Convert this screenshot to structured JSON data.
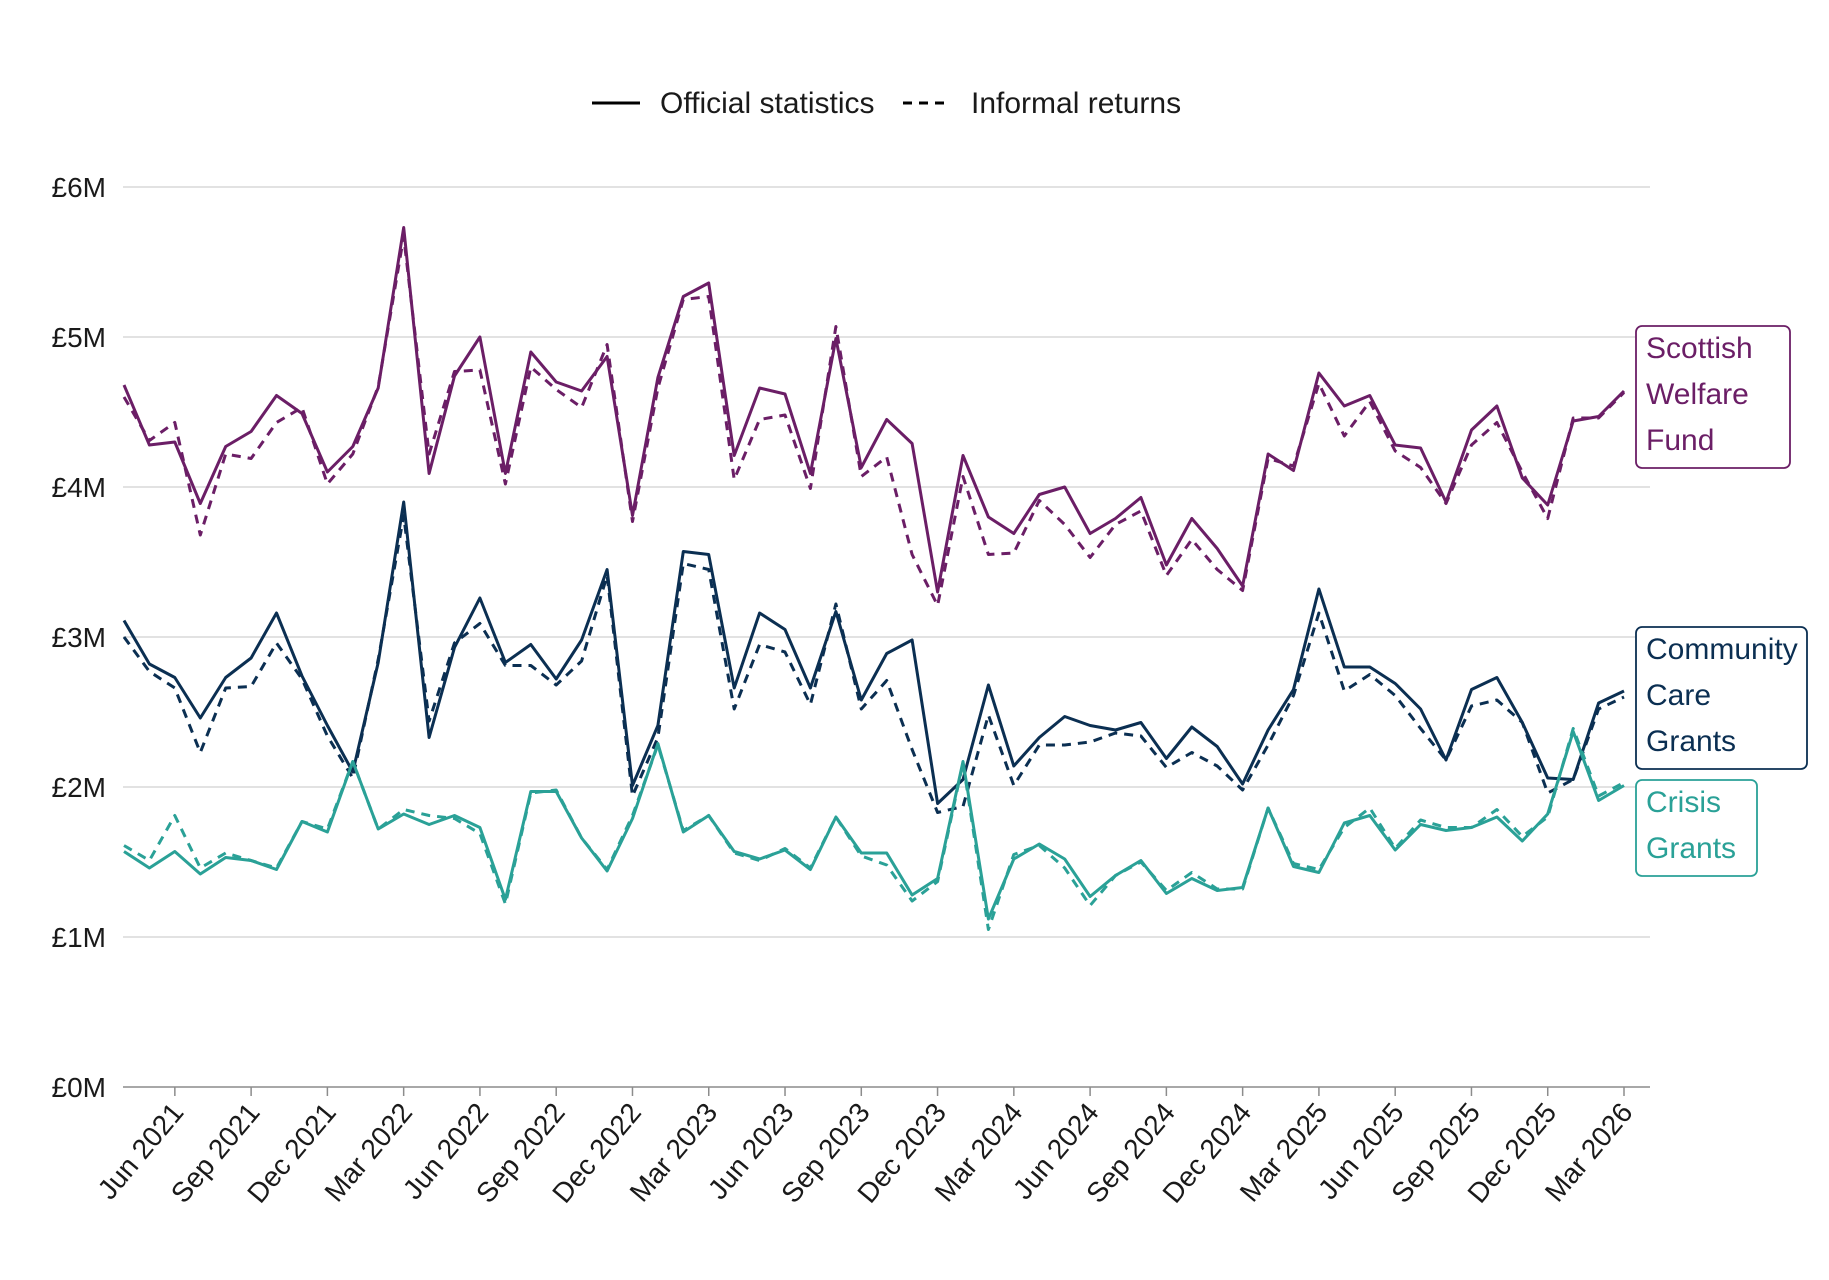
{
  "chart_data": {
    "type": "line",
    "title": "",
    "xlabel": "",
    "ylabel": "",
    "ylim": [
      0,
      6
    ],
    "y_unit": "£M",
    "y_ticks": [
      "£0M",
      "£1M",
      "£2M",
      "£3M",
      "£4M",
      "£5M",
      "£6M"
    ],
    "x_tick_labels": [
      "Jun 2021",
      "Sep 2021",
      "Dec 2021",
      "Mar 2022",
      "Jun 2022",
      "Sep 2022",
      "Dec 2022",
      "Mar 2023",
      "Jun 2023",
      "Sep 2023",
      "Dec 2023",
      "Mar 2024",
      "Jun 2024",
      "Sep 2024",
      "Dec 2024",
      "Mar 2025",
      "Jun 2025",
      "Sep 2025",
      "Dec 2025",
      "Mar 2026"
    ],
    "grid": "horizontal",
    "legend": {
      "placement": "top",
      "entries": [
        {
          "label": "Official statistics",
          "style": "solid"
        },
        {
          "label": "Informal returns",
          "style": "dashed"
        }
      ]
    },
    "x_start_month": "Apr 2021",
    "x": [
      "Apr 2021",
      "May 2021",
      "Jun 2021",
      "Jul 2021",
      "Aug 2021",
      "Sep 2021",
      "Oct 2021",
      "Nov 2021",
      "Dec 2021",
      "Jan 2022",
      "Feb 2022",
      "Mar 2022",
      "Apr 2022",
      "May 2022",
      "Jun 2022",
      "Jul 2022",
      "Aug 2022",
      "Sep 2022",
      "Oct 2022",
      "Nov 2022",
      "Dec 2022",
      "Jan 2023",
      "Feb 2023",
      "Mar 2023",
      "Apr 2023",
      "May 2023",
      "Jun 2023",
      "Jul 2023",
      "Aug 2023",
      "Sep 2023",
      "Oct 2023",
      "Nov 2023",
      "Dec 2023",
      "Jan 2024",
      "Feb 2024",
      "Mar 2024",
      "Apr 2024",
      "May 2024",
      "Jun 2024",
      "Jul 2024",
      "Aug 2024",
      "Sep 2024",
      "Oct 2024",
      "Nov 2024",
      "Dec 2024",
      "Jan 2025",
      "Feb 2025",
      "Mar 2025",
      "Apr 2025",
      "May 2025",
      "Jun 2025",
      "Jul 2025",
      "Aug 2025",
      "Sep 2025",
      "Oct 2025",
      "Nov 2025",
      "Dec 2025",
      "Jan 2026",
      "Feb 2026",
      "Mar 2026"
    ],
    "series": [
      {
        "name": "Scottish Welfare Fund",
        "label_lines": [
          "Scottish",
          "Welfare",
          "Fund"
        ],
        "color": "#6b1e66",
        "official": [
          4.68,
          4.28,
          4.3,
          3.89,
          4.27,
          4.37,
          4.61,
          4.49,
          4.1,
          4.27,
          4.66,
          5.73,
          4.09,
          4.74,
          5.0,
          4.09,
          4.9,
          4.7,
          4.64,
          4.87,
          3.81,
          4.73,
          5.27,
          5.36,
          4.21,
          4.66,
          4.62,
          4.09,
          4.99,
          4.13,
          4.45,
          4.29,
          3.3,
          4.21,
          3.8,
          3.69,
          3.95,
          4.0,
          3.69,
          3.79,
          3.93,
          3.48,
          3.79,
          3.59,
          3.34,
          4.22,
          4.11,
          4.76,
          4.54,
          4.61,
          4.28,
          4.26,
          3.9,
          4.38,
          4.54,
          4.06,
          3.88,
          4.44,
          4.47,
          4.64
        ],
        "informal": [
          4.6,
          4.31,
          4.43,
          3.68,
          4.22,
          4.19,
          4.43,
          4.53,
          4.02,
          4.22,
          4.67,
          5.67,
          4.22,
          4.77,
          4.78,
          4.02,
          4.8,
          4.65,
          4.53,
          4.95,
          3.77,
          4.66,
          5.25,
          5.27,
          4.05,
          4.45,
          4.48,
          3.99,
          5.07,
          4.07,
          4.2,
          3.55,
          3.21,
          4.07,
          3.55,
          3.56,
          3.91,
          3.75,
          3.53,
          3.75,
          3.84,
          3.41,
          3.65,
          3.45,
          3.31,
          4.19,
          4.14,
          4.69,
          4.34,
          4.57,
          4.24,
          4.13,
          3.89,
          4.28,
          4.43,
          4.1,
          3.79,
          4.46,
          4.46,
          4.63
        ]
      },
      {
        "name": "Community Care Grants",
        "label_lines": [
          "Community",
          "Care",
          "Grants"
        ],
        "color": "#0b2f52",
        "official": [
          3.11,
          2.82,
          2.73,
          2.46,
          2.73,
          2.86,
          3.16,
          2.74,
          2.41,
          2.1,
          2.83,
          3.9,
          2.33,
          2.93,
          3.26,
          2.83,
          2.95,
          2.72,
          2.98,
          3.45,
          2.01,
          2.41,
          3.57,
          3.55,
          2.66,
          3.16,
          3.05,
          2.66,
          3.17,
          2.58,
          2.89,
          2.98,
          1.89,
          2.05,
          2.68,
          2.14,
          2.33,
          2.47,
          2.41,
          2.38,
          2.43,
          2.19,
          2.4,
          2.27,
          2.02,
          2.38,
          2.65,
          3.32,
          2.8,
          2.8,
          2.69,
          2.52,
          2.18,
          2.65,
          2.73,
          2.43,
          2.06,
          2.05,
          2.56,
          2.64
        ],
        "informal": [
          3.0,
          2.77,
          2.66,
          2.23,
          2.66,
          2.67,
          2.96,
          2.72,
          2.34,
          2.06,
          2.85,
          3.81,
          2.44,
          2.96,
          3.09,
          2.81,
          2.81,
          2.68,
          2.84,
          3.41,
          1.94,
          2.33,
          3.49,
          3.45,
          2.52,
          2.95,
          2.9,
          2.55,
          3.22,
          2.52,
          2.71,
          2.25,
          1.83,
          1.87,
          2.48,
          2.01,
          2.28,
          2.28,
          2.3,
          2.36,
          2.34,
          2.13,
          2.23,
          2.14,
          1.98,
          2.28,
          2.61,
          3.16,
          2.64,
          2.75,
          2.61,
          2.39,
          2.18,
          2.54,
          2.58,
          2.43,
          1.96,
          2.05,
          2.52,
          2.6
        ]
      },
      {
        "name": "Crisis Grants",
        "label_lines": [
          "Crisis",
          "Grants"
        ],
        "color": "#2aa197",
        "official": [
          1.57,
          1.46,
          1.57,
          1.42,
          1.53,
          1.51,
          1.45,
          1.77,
          1.7,
          2.17,
          1.72,
          1.82,
          1.75,
          1.81,
          1.73,
          1.25,
          1.97,
          1.97,
          1.66,
          1.44,
          1.79,
          2.29,
          1.7,
          1.81,
          1.57,
          1.52,
          1.58,
          1.45,
          1.8,
          1.56,
          1.56,
          1.28,
          1.39,
          2.17,
          1.12,
          1.52,
          1.62,
          1.52,
          1.27,
          1.41,
          1.51,
          1.29,
          1.39,
          1.31,
          1.33,
          1.86,
          1.47,
          1.43,
          1.76,
          1.81,
          1.58,
          1.75,
          1.71,
          1.73,
          1.8,
          1.64,
          1.82,
          2.37,
          1.91,
          2.01
        ],
        "informal": [
          1.61,
          1.51,
          1.81,
          1.46,
          1.56,
          1.51,
          1.46,
          1.77,
          1.72,
          2.17,
          1.72,
          1.85,
          1.81,
          1.79,
          1.69,
          1.22,
          1.96,
          1.98,
          1.66,
          1.45,
          1.81,
          2.28,
          1.71,
          1.81,
          1.56,
          1.51,
          1.59,
          1.46,
          1.8,
          1.54,
          1.48,
          1.24,
          1.37,
          2.16,
          1.05,
          1.55,
          1.61,
          1.46,
          1.21,
          1.41,
          1.5,
          1.31,
          1.43,
          1.32,
          1.32,
          1.86,
          1.49,
          1.45,
          1.73,
          1.86,
          1.59,
          1.78,
          1.73,
          1.73,
          1.85,
          1.67,
          1.8,
          2.39,
          1.94,
          2.03
        ]
      }
    ]
  }
}
